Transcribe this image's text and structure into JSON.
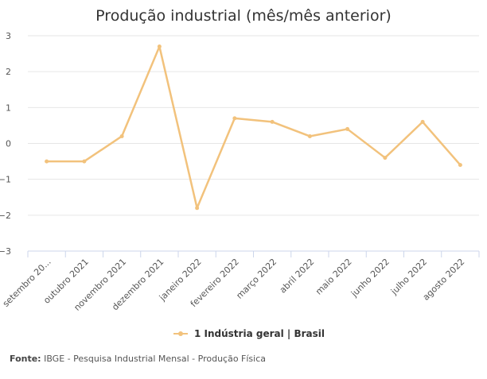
{
  "chart_data": {
    "type": "line",
    "title": "Produção industrial (mês/mês anterior)",
    "categories": [
      "setembro 20...",
      "outubro 2021",
      "novembro 2021",
      "dezembro 2021",
      "janeiro 2022",
      "fevereiro 2022",
      "março 2022",
      "abril 2022",
      "maio 2022",
      "junho 2022",
      "julho 2022",
      "agosto 2022"
    ],
    "series": [
      {
        "name": "1 Indústria geral | Brasil",
        "values": [
          -0.5,
          -0.5,
          0.2,
          2.7,
          -1.8,
          0.7,
          0.6,
          0.2,
          0.4,
          -0.4,
          0.6,
          -0.6
        ]
      }
    ],
    "yticks": [
      "3",
      "2",
      "1",
      "0",
      "−1",
      "−2",
      "−3"
    ],
    "ylim": [
      -3,
      3
    ],
    "grid": true,
    "legend": "bottom-center",
    "colors": {
      "series": "#f2c27c",
      "grid": "#e6e6e6",
      "axis": "#ccd6eb"
    }
  },
  "source": {
    "label": "Fonte:",
    "text": " IBGE - Pesquisa Industrial Mensal - Produção Física"
  }
}
